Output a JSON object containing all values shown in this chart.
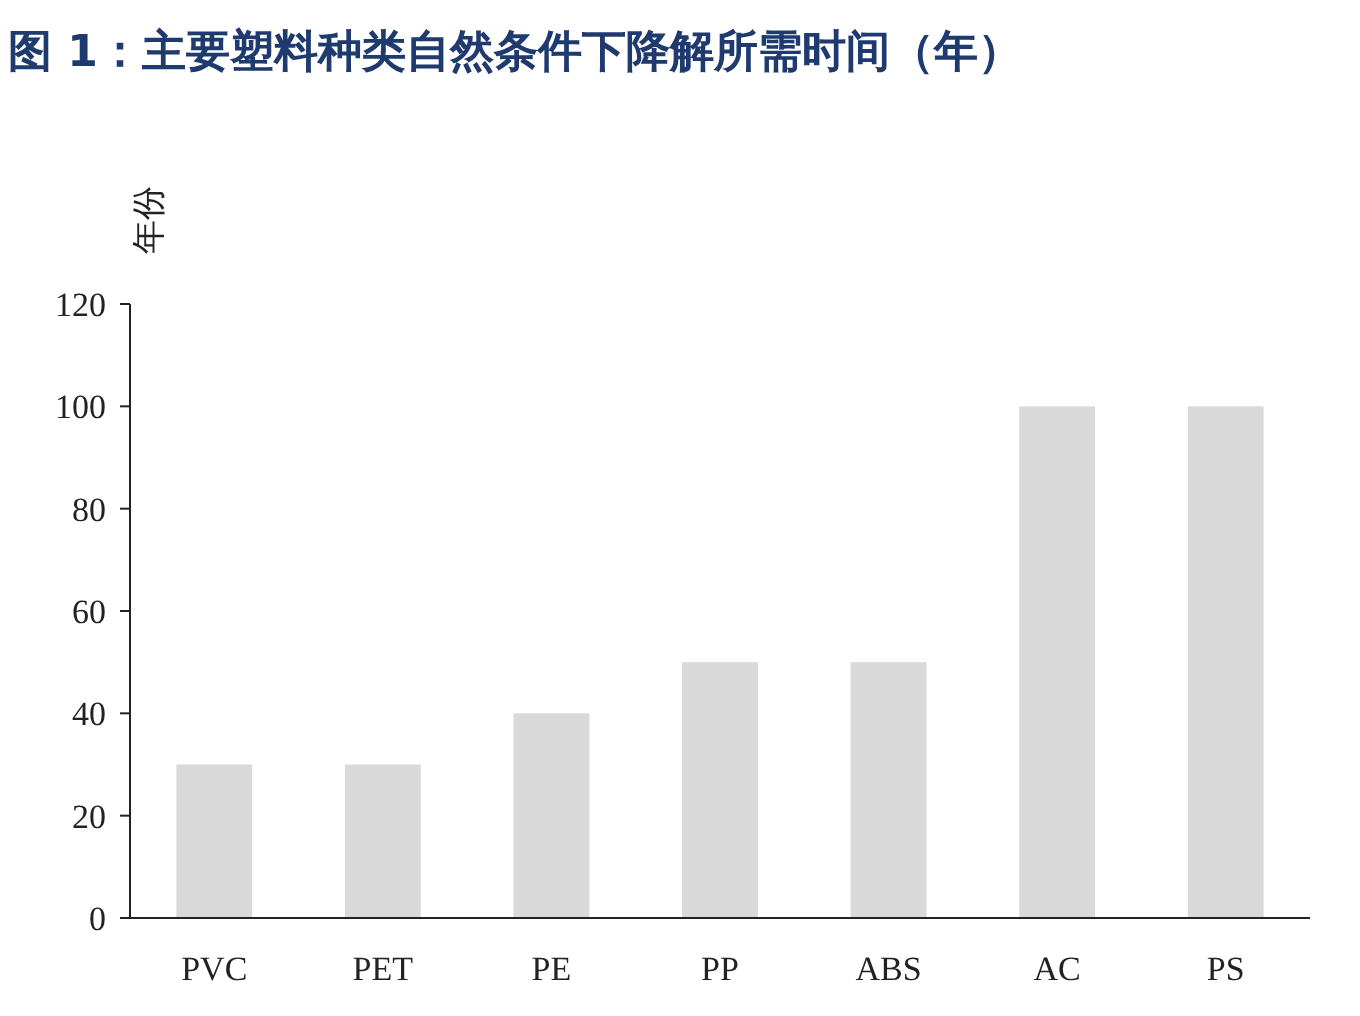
{
  "chart_data": {
    "type": "bar",
    "title": "图 1：主要塑料种类自然条件下降解所需时间（年）",
    "ylabel": "年份",
    "categories": [
      "PVC",
      "PET",
      "PE",
      "PP",
      "ABS",
      "AC",
      "PS"
    ],
    "values": [
      30,
      30,
      40,
      50,
      50,
      100,
      100
    ],
    "color": "#d9d9d9",
    "ylim": [
      0,
      120
    ],
    "yticks": [
      0,
      20,
      40,
      60,
      80,
      100,
      120
    ],
    "grid": false
  }
}
